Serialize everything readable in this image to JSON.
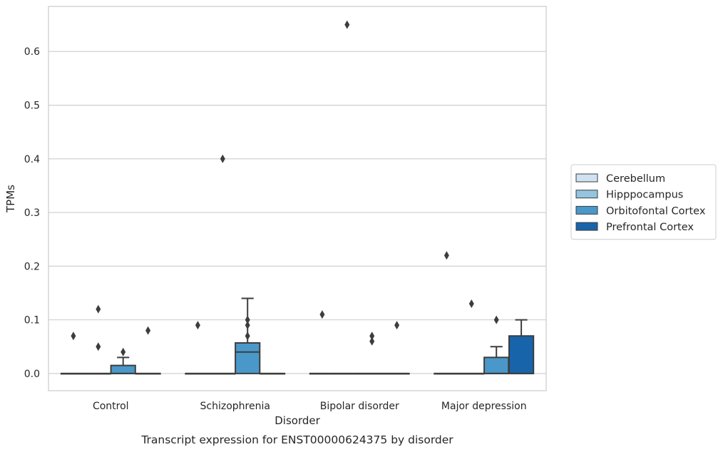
{
  "chart_data": {
    "type": "box",
    "title": "",
    "caption": "Transcript expression for ENST00000624375 by disorder",
    "xlabel": "Disorder",
    "ylabel": "TPMs",
    "ylim": [
      -0.032,
      0.684
    ],
    "yticks": [
      "0.0",
      "0.1",
      "0.2",
      "0.3",
      "0.4",
      "0.5",
      "0.6"
    ],
    "grid": "horizontal",
    "legend_position": "right",
    "categories": [
      "Control",
      "Schizophrenia",
      "Bipolar disorder",
      "Major depression"
    ],
    "series": [
      {
        "name": "Cerebellum",
        "color": "#d0e1f2",
        "boxes": [
          {
            "q1": 0,
            "median": 0,
            "q3": 0,
            "whisker_low": 0,
            "whisker_high": 0,
            "outliers": [
              0.07
            ]
          },
          {
            "q1": 0,
            "median": 0,
            "q3": 0,
            "whisker_low": 0,
            "whisker_high": 0,
            "outliers": [
              0.09
            ]
          },
          {
            "q1": 0,
            "median": 0,
            "q3": 0,
            "whisker_low": 0,
            "whisker_high": 0,
            "outliers": [
              0.11
            ]
          },
          {
            "q1": 0,
            "median": 0,
            "q3": 0,
            "whisker_low": 0,
            "whisker_high": 0,
            "outliers": [
              0.22
            ]
          }
        ]
      },
      {
        "name": "Hipppocampus",
        "color": "#94c4df",
        "boxes": [
          {
            "q1": 0,
            "median": 0,
            "q3": 0,
            "whisker_low": 0,
            "whisker_high": 0,
            "outliers": [
              0.12,
              0.05
            ]
          },
          {
            "q1": 0,
            "median": 0,
            "q3": 0,
            "whisker_low": 0,
            "whisker_high": 0,
            "outliers": [
              0.4
            ]
          },
          {
            "q1": 0,
            "median": 0,
            "q3": 0,
            "whisker_low": 0,
            "whisker_high": 0,
            "outliers": [
              0.65
            ]
          },
          {
            "q1": 0,
            "median": 0,
            "q3": 0,
            "whisker_low": 0,
            "whisker_high": 0,
            "outliers": [
              0.13
            ]
          }
        ]
      },
      {
        "name": "Orbitofontal Cortex",
        "color": "#4a98c9",
        "boxes": [
          {
            "q1": 0,
            "median": 0,
            "q3": 0.015,
            "whisker_low": 0,
            "whisker_high": 0.03,
            "outliers": [
              0.04
            ]
          },
          {
            "q1": 0,
            "median": 0.04,
            "q3": 0.057,
            "whisker_low": 0,
            "whisker_high": 0.14,
            "outliers": [
              0.1,
              0.09,
              0.07
            ]
          },
          {
            "q1": 0,
            "median": 0,
            "q3": 0,
            "whisker_low": 0,
            "whisker_high": 0,
            "outliers": [
              0.07,
              0.06
            ]
          },
          {
            "q1": 0,
            "median": 0,
            "q3": 0.03,
            "whisker_low": 0,
            "whisker_high": 0.05,
            "outliers": [
              0.1
            ]
          }
        ]
      },
      {
        "name": "Prefrontal Cortex",
        "color": "#1764ab",
        "boxes": [
          {
            "q1": 0,
            "median": 0,
            "q3": 0,
            "whisker_low": 0,
            "whisker_high": 0,
            "outliers": [
              0.08
            ]
          },
          {
            "q1": 0,
            "median": 0,
            "q3": 0,
            "whisker_low": 0,
            "whisker_high": 0,
            "outliers": []
          },
          {
            "q1": 0,
            "median": 0,
            "q3": 0,
            "whisker_low": 0,
            "whisker_high": 0,
            "outliers": [
              0.09
            ]
          },
          {
            "q1": 0,
            "median": 0,
            "q3": 0.07,
            "whisker_low": 0,
            "whisker_high": 0.1,
            "outliers": []
          }
        ]
      }
    ]
  }
}
